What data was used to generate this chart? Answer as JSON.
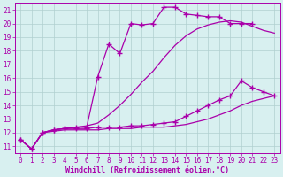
{
  "background_color": "#d8f0f0",
  "grid_color": "#b0d0d0",
  "line_color": "#aa00aa",
  "xlabel": "Windchill (Refroidissement éolien,°C)",
  "xlim": [
    -0.5,
    23.5
  ],
  "ylim": [
    10.5,
    21.5
  ],
  "xticks": [
    0,
    1,
    2,
    3,
    4,
    5,
    6,
    7,
    8,
    9,
    10,
    11,
    12,
    13,
    14,
    15,
    16,
    17,
    18,
    19,
    20,
    21,
    22,
    23
  ],
  "yticks": [
    11,
    12,
    13,
    14,
    15,
    16,
    17,
    18,
    19,
    20,
    21
  ],
  "series": [
    {
      "x": [
        0,
        1,
        2,
        3,
        4,
        5,
        6,
        7,
        8,
        9,
        10,
        11,
        12,
        13,
        14,
        15,
        16,
        17,
        18,
        19,
        20,
        21
      ],
      "y": [
        11.5,
        10.8,
        12.0,
        12.2,
        12.3,
        12.4,
        12.4,
        16.1,
        18.5,
        17.8,
        20.0,
        19.9,
        20.0,
        21.2,
        21.2,
        20.7,
        20.6,
        20.5,
        20.5,
        20.0,
        20.0,
        20.0
      ],
      "marker": "+",
      "markersize": 4,
      "linewidth": 0.9
    },
    {
      "x": [
        0,
        1,
        2,
        3,
        4,
        5,
        6,
        7,
        8,
        9,
        10,
        11,
        12,
        13,
        14,
        15,
        16,
        17,
        18,
        19,
        20,
        21,
        22,
        23
      ],
      "y": [
        11.5,
        10.8,
        12.0,
        12.2,
        12.3,
        12.4,
        12.5,
        12.7,
        13.3,
        14.0,
        14.8,
        15.7,
        16.5,
        17.5,
        18.4,
        19.1,
        19.6,
        19.9,
        20.1,
        20.2,
        20.1,
        19.8,
        19.5,
        19.3
      ],
      "marker": "",
      "markersize": 0,
      "linewidth": 0.9
    },
    {
      "x": [
        0,
        1,
        2,
        3,
        4,
        5,
        6,
        7,
        8,
        9,
        10,
        11,
        12,
        13,
        14,
        15,
        16,
        17,
        18,
        19,
        20,
        21,
        22,
        23
      ],
      "y": [
        11.5,
        10.8,
        12.0,
        12.2,
        12.3,
        12.3,
        12.3,
        12.4,
        12.4,
        12.4,
        12.5,
        12.5,
        12.6,
        12.7,
        12.8,
        13.2,
        13.6,
        14.0,
        14.4,
        14.7,
        15.8,
        15.3,
        15.0,
        14.7
      ],
      "marker": "+",
      "markersize": 4,
      "linewidth": 0.9
    },
    {
      "x": [
        0,
        1,
        2,
        3,
        4,
        5,
        6,
        7,
        8,
        9,
        10,
        11,
        12,
        13,
        14,
        15,
        16,
        17,
        18,
        19,
        20,
        21,
        22,
        23
      ],
      "y": [
        11.5,
        10.8,
        12.0,
        12.1,
        12.2,
        12.2,
        12.2,
        12.2,
        12.3,
        12.3,
        12.3,
        12.4,
        12.4,
        12.4,
        12.5,
        12.6,
        12.8,
        13.0,
        13.3,
        13.6,
        14.0,
        14.3,
        14.5,
        14.7
      ],
      "marker": "",
      "markersize": 0,
      "linewidth": 0.9
    }
  ]
}
